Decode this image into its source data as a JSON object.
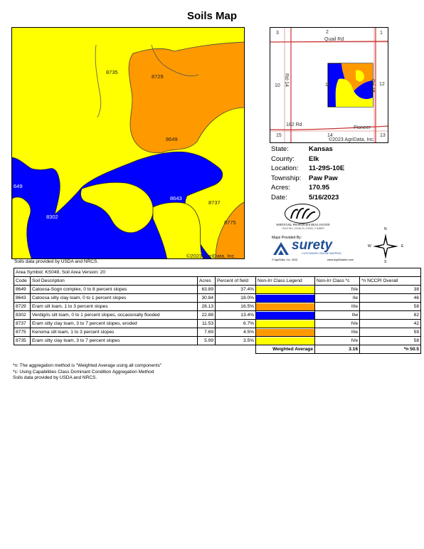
{
  "title": "Soils Map",
  "main_map": {
    "labels": {
      "a8735": "8735",
      "a8729": "8729",
      "a8649": "8649",
      "a8643": "8643",
      "a8737": "8737",
      "a8775": "8775",
      "a8302": "8302",
      "a649": "649"
    },
    "copyright": "©2023 AgriData, Inc.",
    "credit": "Soils data provided by USDA and NRCS."
  },
  "location_map": {
    "labels": {
      "n3": "3",
      "n2": "2",
      "n1": "1",
      "quail": "Quail Rd",
      "rd14": "Rd-14",
      "rd15": "Rd-15",
      "n10": "10",
      "n11": "11",
      "n12": "12",
      "rd182": "182 Rd",
      "pioneer": "Pioneer",
      "n15": "15",
      "n14": "14",
      "n13": "13",
      "copyright": "©2023 AgriData, Inc."
    }
  },
  "info": [
    {
      "k": "State:",
      "v": "Kansas"
    },
    {
      "k": "County:",
      "v": "Elk"
    },
    {
      "k": "Location:",
      "v": "11-29S-10E"
    },
    {
      "k": "Township:",
      "v": "Paw Paw"
    },
    {
      "k": "Acres:",
      "v": "170.95"
    },
    {
      "k": "Date:",
      "v": "5/16/2023"
    }
  ],
  "logos": {
    "whitetail": "WHITETAIL PROPERTIES REAL ESTATE",
    "whitetail_sub": "HUNTING | RANCH | FARM | TIMBER",
    "maps_by": "Maps Provided By:",
    "surety": "surety",
    "surety_tag": "CUSTOMIZED ONLINE MAPPING",
    "agridata": "© AgriData, Inc. 2023",
    "url": "www.AgriDataInc.com",
    "compass_n": "N",
    "compass_s": "S",
    "compass_e": "E",
    "compass_w": "W"
  },
  "colors": {
    "blue": "#0000ff",
    "yellow": "#ffff00",
    "orange": "#ff9900",
    "surety_blue": "#1f4e96"
  },
  "table": {
    "area_symbol": "Area Symbol: KS049, Soil Area Version: 20",
    "headers": [
      "Code",
      "Soil Description",
      "Acres",
      "Percent of field",
      "Non-Irr Class Legend",
      "Non-Irr Class *c",
      "*n NCCPI Overall"
    ],
    "rows": [
      {
        "code": "8649",
        "desc": "Catoosa-Sogn complex, 0 to 8 percent slopes",
        "acres": "63.89",
        "pct": "37.4%",
        "color": "#ffff00",
        "cls": "IVe",
        "nccpi": "38"
      },
      {
        "code": "8643",
        "desc": "Catoosa silty clay loam, 0 to 1 percent slopes",
        "acres": "30.84",
        "pct": "18.0%",
        "color": "#0000ff",
        "cls": "IIe",
        "nccpi": "46"
      },
      {
        "code": "8729",
        "desc": "Eram silt loam, 1 to 3 percent slopes",
        "acres": "28.13",
        "pct": "16.5%",
        "color": "#ff9900",
        "cls": "IIIe",
        "nccpi": "58"
      },
      {
        "code": "8302",
        "desc": "Verdigris silt loam, 0 to 1 percent slopes, occasionally flooded",
        "acres": "22.88",
        "pct": "13.4%",
        "color": "#0000ff",
        "cls": "IIw",
        "nccpi": "82"
      },
      {
        "code": "8737",
        "desc": "Eram silty clay loam, 3 to 7 percent slopes, eroded",
        "acres": "11.53",
        "pct": "6.7%",
        "color": "#ffff00",
        "cls": "IVe",
        "nccpi": "42"
      },
      {
        "code": "8775",
        "desc": "Kenoma silt loam, 1 to 3 percent slopes",
        "acres": "7.69",
        "pct": "4.5%",
        "color": "#ff9900",
        "cls": "IIIe",
        "nccpi": "59"
      },
      {
        "code": "8735",
        "desc": "Eram silty clay loam, 3 to 7 percent slopes",
        "acres": "5.99",
        "pct": "3.5%",
        "color": "#ffff00",
        "cls": "IVe",
        "nccpi": "58"
      }
    ],
    "weighted_label": "Weighted Average",
    "weighted_class": "3.16",
    "weighted_nccpi": "*n 50.5"
  },
  "notes": [
    "*n: The aggregation method is \"Weighted Average using all components\"",
    "*c: Using Capabilities Class Dominant Condition Aggregation Method",
    "Soils data provided by USDA and NRCS."
  ]
}
